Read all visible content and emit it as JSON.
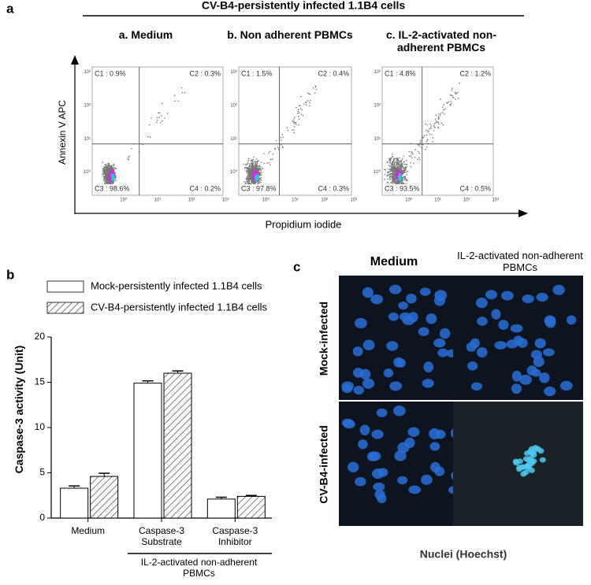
{
  "flow_cytometry": {
    "label": "a",
    "title": "CV-B4-persistently infected 1.1B4 cells",
    "y_label": "Annexin V APC",
    "x_label": "Propidium iodide",
    "axis_ticks": [
      "10⁰",
      "10¹",
      "10²",
      "10³"
    ],
    "plots": [
      {
        "title": "a.  Medium",
        "gates": [
          "C1 : 0.9%",
          "C2 : 0.3%",
          "C3 : 98.6%",
          "C4 : 0.2%"
        ]
      },
      {
        "title": "b. Non adherent PBMCs",
        "gates": [
          "C1 : 1.5%",
          "C2 : 0.4%",
          "C3 : 97.8%",
          "C4 : 0.3%"
        ]
      },
      {
        "title": "c. IL-2-activated non-adherent PBMCs",
        "gates": [
          "C1 : 4.8%",
          "C2 : 1.2%",
          "C3 : 93.5%",
          "C4 : 0.5%"
        ]
      }
    ]
  },
  "chart_data": {
    "type": "bar",
    "label": "b",
    "y_label": "Caspase-3 activity (Unit)",
    "categories": [
      "Medium",
      "Caspase-3 Substrate",
      "Caspase-3 Inhibitor"
    ],
    "group_label": "IL-2-activated non-adherent PBMCs",
    "series": [
      {
        "name": "Mock-persistently infected 1.1B4 cells",
        "color": "#ffffff",
        "hatch": false,
        "values": [
          3.3,
          14.9,
          2.1
        ],
        "errors": [
          0.25,
          0.25,
          0.2
        ]
      },
      {
        "name": "CV-B4-persistently infected 1.1B4 cells",
        "color": "#ffffff",
        "hatch": true,
        "values": [
          4.6,
          16.0,
          2.4
        ],
        "errors": [
          0.35,
          0.25,
          0.1
        ]
      }
    ],
    "ylim": [
      0,
      20
    ],
    "yticks": [
      0,
      5,
      10,
      15,
      20
    ],
    "grid": false
  },
  "microscopy": {
    "label": "c",
    "columns": [
      "Medium",
      "IL-2-activated non-adherent PBMCs"
    ],
    "rows": [
      "Mock-infected",
      "CV-B4-infected"
    ],
    "caption": "Nuclei (Hoechst)"
  }
}
